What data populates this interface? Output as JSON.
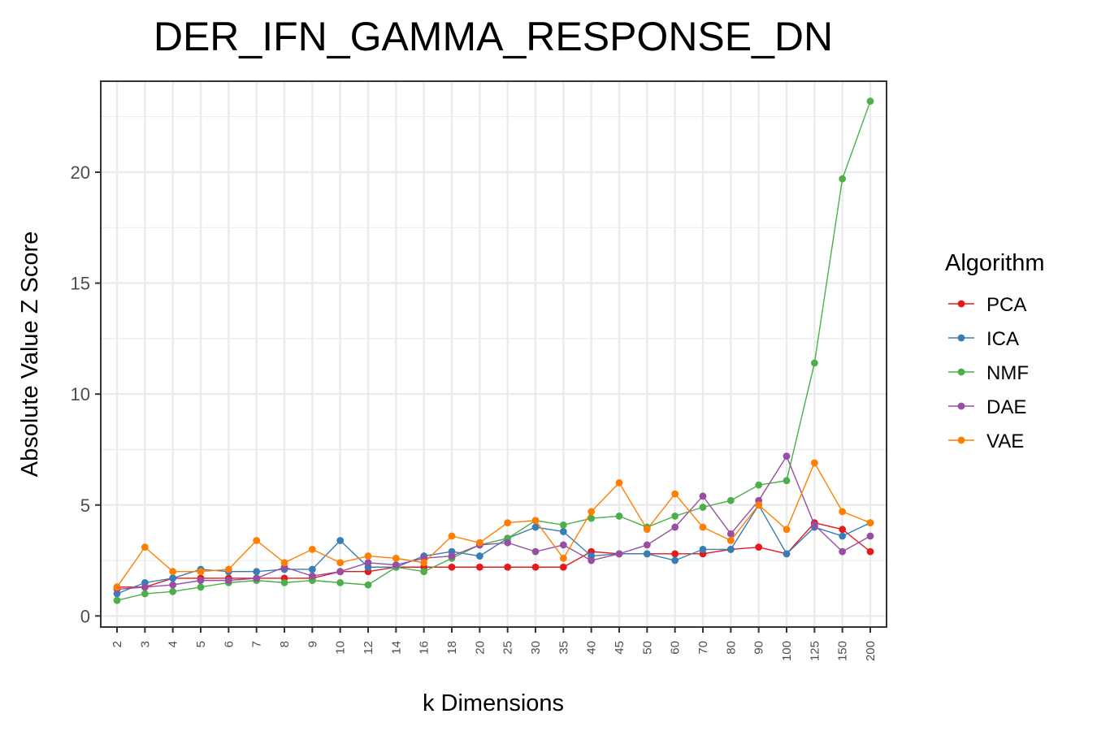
{
  "chart_data": {
    "type": "line",
    "title": "DER_IFN_GAMMA_RESPONSE_DN",
    "xlabel": "k Dimensions",
    "ylabel": "Absolute Value Z Score",
    "categories": [
      "2",
      "3",
      "4",
      "5",
      "6",
      "7",
      "8",
      "9",
      "10",
      "12",
      "14",
      "16",
      "18",
      "20",
      "25",
      "30",
      "35",
      "40",
      "45",
      "50",
      "60",
      "70",
      "80",
      "90",
      "100",
      "125",
      "150",
      "200"
    ],
    "ylim": [
      -0.5,
      24.1
    ],
    "yticks": [
      "0",
      "5",
      "10",
      "15",
      "20"
    ],
    "grid": true,
    "legend": {
      "title": "Algorithm",
      "placement": "right"
    },
    "series": [
      {
        "name": "PCA",
        "color": "#E41A1C",
        "values": [
          1.3,
          1.3,
          1.7,
          1.7,
          1.7,
          1.7,
          1.7,
          1.7,
          2.0,
          2.0,
          2.2,
          2.2,
          2.2,
          2.2,
          2.2,
          2.2,
          2.2,
          2.9,
          2.8,
          2.8,
          2.8,
          2.8,
          3.0,
          3.1,
          2.8,
          4.2,
          3.9,
          2.9
        ]
      },
      {
        "name": "ICA",
        "color": "#377EB8",
        "values": [
          1.0,
          1.5,
          1.7,
          2.1,
          2.0,
          2.0,
          2.1,
          2.1,
          3.4,
          2.2,
          2.2,
          2.7,
          2.9,
          2.7,
          3.5,
          4.0,
          3.8,
          2.7,
          2.8,
          2.8,
          2.5,
          3.0,
          3.0,
          5.0,
          2.8,
          4.0,
          3.6,
          4.2
        ]
      },
      {
        "name": "NMF",
        "color": "#4DAF4A",
        "values": [
          0.7,
          1.0,
          1.1,
          1.3,
          1.5,
          1.6,
          1.5,
          1.6,
          1.5,
          1.4,
          2.2,
          2.0,
          2.6,
          3.2,
          3.5,
          4.3,
          4.1,
          4.4,
          4.5,
          4.0,
          4.5,
          4.9,
          5.2,
          5.9,
          6.1,
          11.4,
          19.7,
          23.2
        ]
      },
      {
        "name": "DAE",
        "color": "#984EA3",
        "values": [
          1.2,
          1.3,
          1.4,
          1.6,
          1.6,
          1.7,
          2.2,
          1.8,
          2.0,
          2.4,
          2.3,
          2.6,
          2.7,
          3.2,
          3.3,
          2.9,
          3.2,
          2.5,
          2.8,
          3.2,
          4.0,
          5.4,
          3.7,
          5.2,
          7.2,
          4.1,
          2.9,
          3.6
        ]
      },
      {
        "name": "VAE",
        "color": "#FF7F00",
        "values": [
          1.3,
          3.1,
          2.0,
          2.0,
          2.1,
          3.4,
          2.4,
          3.0,
          2.4,
          2.7,
          2.6,
          2.4,
          3.6,
          3.3,
          4.2,
          4.3,
          2.6,
          4.7,
          6.0,
          3.9,
          5.5,
          4.0,
          3.4,
          5.0,
          3.9,
          6.9,
          4.7,
          4.2
        ]
      }
    ]
  }
}
